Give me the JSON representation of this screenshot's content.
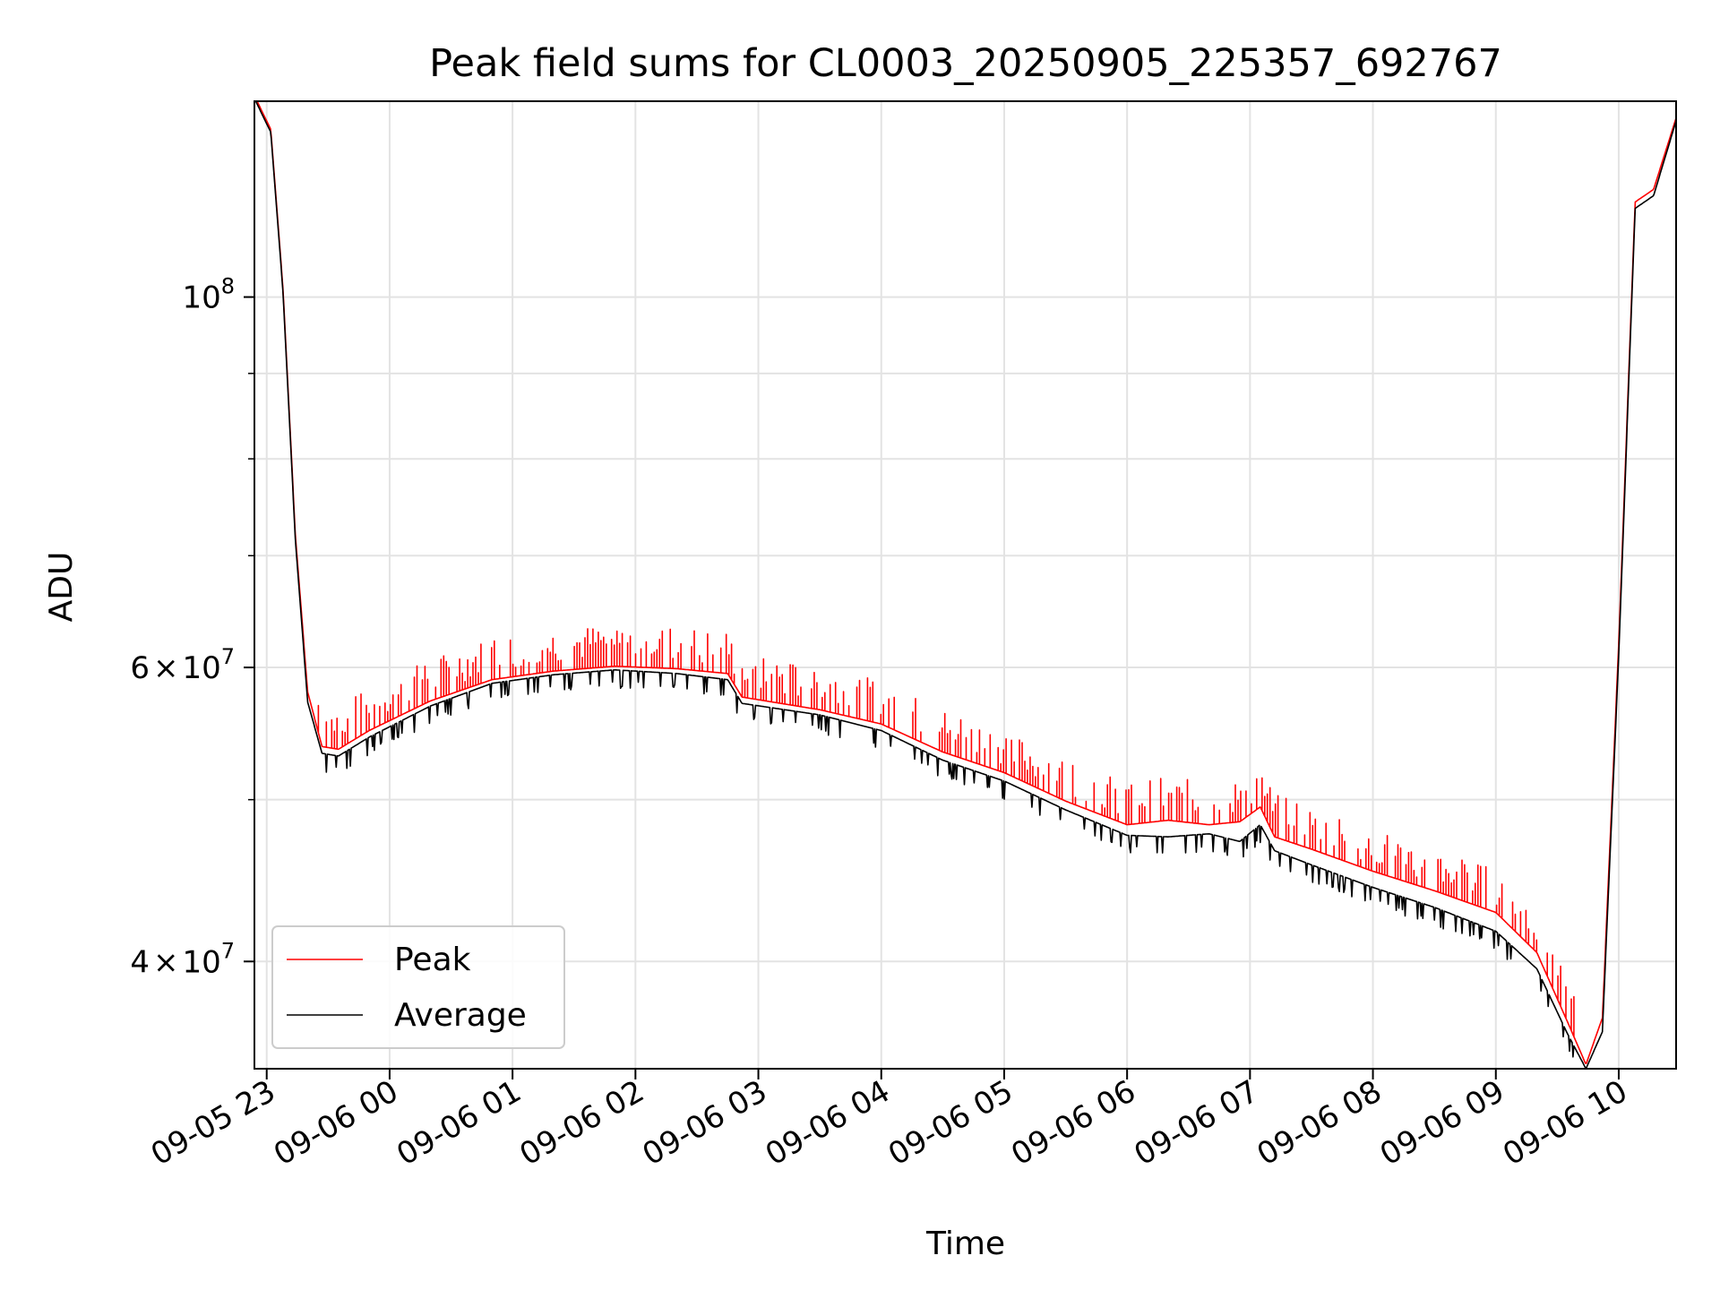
{
  "chart_data": {
    "type": "line",
    "title": "Peak field sums for CL0003_20250905_225357_692767",
    "xlabel": "Time",
    "ylabel": "ADU",
    "x_axis": {
      "type": "time",
      "min": "2025-09-05 22:54",
      "max": "2025-09-06 10:28",
      "ticks": [
        {
          "label": "09-05 23",
          "time": "2025-09-05 23:00"
        },
        {
          "label": "09-06 00",
          "time": "2025-09-06 00:00"
        },
        {
          "label": "09-06 01",
          "time": "2025-09-06 01:00"
        },
        {
          "label": "09-06 02",
          "time": "2025-09-06 02:00"
        },
        {
          "label": "09-06 03",
          "time": "2025-09-06 03:00"
        },
        {
          "label": "09-06 04",
          "time": "2025-09-06 04:00"
        },
        {
          "label": "09-06 05",
          "time": "2025-09-06 05:00"
        },
        {
          "label": "09-06 06",
          "time": "2025-09-06 06:00"
        },
        {
          "label": "09-06 07",
          "time": "2025-09-06 07:00"
        },
        {
          "label": "09-06 08",
          "time": "2025-09-06 08:00"
        },
        {
          "label": "09-06 09",
          "time": "2025-09-06 09:00"
        },
        {
          "label": "09-06 10",
          "time": "2025-09-06 10:00"
        }
      ]
    },
    "y_axis": {
      "scale": "log",
      "min": 34500000,
      "max": 131000000,
      "major_ticks": [
        {
          "value": 40000000,
          "mantissa": "4",
          "exp": "7"
        },
        {
          "value": 60000000,
          "mantissa": "6",
          "exp": "7"
        },
        {
          "value": 100000000,
          "mantissa": "",
          "exp": "8"
        }
      ],
      "minor_ticks": [
        50000000,
        70000000,
        80000000,
        90000000
      ]
    },
    "grid": true,
    "legend_position": "lower-left",
    "series": [
      {
        "name": "Peak",
        "color": "#ff0000",
        "spikes": true,
        "points": [
          [
            "2025-09-05 22:54",
            132000000
          ],
          [
            "2025-09-05 23:02",
            126000000
          ],
          [
            "2025-09-05 23:08",
            101000000
          ],
          [
            "2025-09-05 23:14",
            72000000
          ],
          [
            "2025-09-05 23:20",
            58000000
          ],
          [
            "2025-09-05 23:27",
            53800000
          ],
          [
            "2025-09-05 23:35",
            53600000
          ],
          [
            "2025-09-05 23:50",
            55000000
          ],
          [
            "2025-09-06 00:20",
            57300000
          ],
          [
            "2025-09-06 00:50",
            59000000
          ],
          [
            "2025-09-06 01:20",
            59700000
          ],
          [
            "2025-09-06 01:50",
            60100000
          ],
          [
            "2025-09-06 02:20",
            59900000
          ],
          [
            "2025-09-06 02:45",
            59500000
          ],
          [
            "2025-09-06 02:52",
            57600000
          ],
          [
            "2025-09-06 03:30",
            56600000
          ],
          [
            "2025-09-06 04:00",
            55500000
          ],
          [
            "2025-09-06 04:30",
            53400000
          ],
          [
            "2025-09-06 05:00",
            51900000
          ],
          [
            "2025-09-06 05:30",
            49900000
          ],
          [
            "2025-09-06 06:00",
            48300000
          ],
          [
            "2025-09-06 06:20",
            48600000
          ],
          [
            "2025-09-06 06:40",
            48300000
          ],
          [
            "2025-09-06 06:55",
            48500000
          ],
          [
            "2025-09-06 07:05",
            49500000
          ],
          [
            "2025-09-06 07:12",
            47500000
          ],
          [
            "2025-09-06 07:30",
            46700000
          ],
          [
            "2025-09-06 08:00",
            45300000
          ],
          [
            "2025-09-06 08:30",
            44100000
          ],
          [
            "2025-09-06 09:00",
            42800000
          ],
          [
            "2025-09-06 09:20",
            40500000
          ],
          [
            "2025-09-06 09:35",
            36800000
          ],
          [
            "2025-09-06 09:44",
            34700000
          ],
          [
            "2025-09-06 09:52",
            37000000
          ],
          [
            "2025-09-06 10:00",
            62000000
          ],
          [
            "2025-09-06 10:08",
            114000000
          ],
          [
            "2025-09-06 10:17",
            116000000
          ],
          [
            "2025-09-06 10:28",
            128000000
          ]
        ]
      },
      {
        "name": "Average",
        "color": "#000000",
        "spikes": false,
        "points": [
          [
            "2025-09-05 22:54",
            131500000
          ],
          [
            "2025-09-05 23:02",
            125500000
          ],
          [
            "2025-09-05 23:08",
            100500000
          ],
          [
            "2025-09-05 23:14",
            71500000
          ],
          [
            "2025-09-05 23:20",
            57200000
          ],
          [
            "2025-09-05 23:27",
            53300000
          ],
          [
            "2025-09-05 23:35",
            53100000
          ],
          [
            "2025-09-05 23:50",
            54500000
          ],
          [
            "2025-09-06 00:20",
            56900000
          ],
          [
            "2025-09-06 00:50",
            58700000
          ],
          [
            "2025-09-06 01:20",
            59400000
          ],
          [
            "2025-09-06 01:50",
            59800000
          ],
          [
            "2025-09-06 02:20",
            59500000
          ],
          [
            "2025-09-06 02:45",
            59000000
          ],
          [
            "2025-09-06 02:52",
            57100000
          ],
          [
            "2025-09-06 03:30",
            56200000
          ],
          [
            "2025-09-06 04:00",
            55000000
          ],
          [
            "2025-09-06 04:30",
            52800000
          ],
          [
            "2025-09-06 05:00",
            51300000
          ],
          [
            "2025-09-06 05:30",
            49300000
          ],
          [
            "2025-09-06 06:00",
            47600000
          ],
          [
            "2025-09-06 06:20",
            47500000
          ],
          [
            "2025-09-06 06:40",
            47700000
          ],
          [
            "2025-09-06 06:55",
            47200000
          ],
          [
            "2025-09-06 07:05",
            48300000
          ],
          [
            "2025-09-06 07:12",
            46600000
          ],
          [
            "2025-09-06 07:30",
            45700000
          ],
          [
            "2025-09-06 08:00",
            44300000
          ],
          [
            "2025-09-06 08:30",
            43100000
          ],
          [
            "2025-09-06 09:00",
            41700000
          ],
          [
            "2025-09-06 09:20",
            39600000
          ],
          [
            "2025-09-06 09:35",
            36200000
          ],
          [
            "2025-09-06 09:44",
            34500000
          ],
          [
            "2025-09-06 09:52",
            36300000
          ],
          [
            "2025-09-06 10:00",
            61000000
          ],
          [
            "2025-09-06 10:08",
            113000000
          ],
          [
            "2025-09-06 10:17",
            115000000
          ],
          [
            "2025-09-06 10:28",
            127500000
          ]
        ]
      }
    ]
  }
}
